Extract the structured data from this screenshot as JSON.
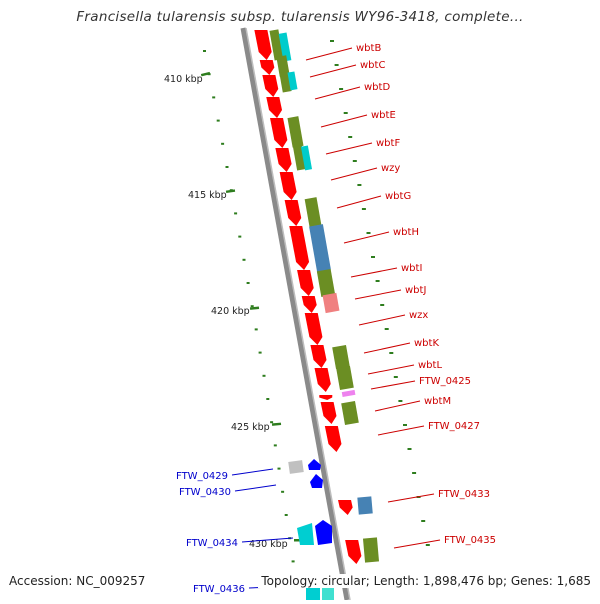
{
  "title": "Francisella tularensis subsp. tularensis WY96-3418, complete...",
  "accession": "Accession: NC_009257",
  "stats": "Topology: circular; Length: 1,898,476 bp; Genes: 1,685",
  "colors": {
    "backbone": "#8a8a8a",
    "cds_forward": "#ff0000",
    "reverse_label": "#0000cc",
    "forward_label": "#cc0000",
    "tick": "#2e7d1e",
    "cog_green": "#6b8e23",
    "cog_teal": "#00cccc",
    "cog_blue": "#4682b4",
    "cog_pink": "#ee82ee",
    "cog_salmon": "#f08080",
    "reverse_blue": "#0000ff",
    "reverse_grey": "#c0c0c0",
    "reverse_cyan": "#00ced1"
  },
  "scale_labels": [
    "410 kbp",
    "415 kbp",
    "420 kbp",
    "425 kbp",
    "430 kbp"
  ],
  "forward_genes": [
    {
      "name": "wbtB",
      "cog": "green"
    },
    {
      "name": "wbtC",
      "cog": "green"
    },
    {
      "name": "wbtD",
      "cog": "green"
    },
    {
      "name": "wbtE",
      "cog": "green"
    },
    {
      "name": "wbtF",
      "cog": "teal"
    },
    {
      "name": "wzy",
      "cog": "none"
    },
    {
      "name": "wbtG",
      "cog": "green"
    },
    {
      "name": "wbtH",
      "cog": "blue"
    },
    {
      "name": "wbtI",
      "cog": "green"
    },
    {
      "name": "wbtJ",
      "cog": "salmon"
    },
    {
      "name": "wzx",
      "cog": "none"
    },
    {
      "name": "wbtK",
      "cog": "green"
    },
    {
      "name": "wbtL",
      "cog": "green"
    },
    {
      "name": "FTW_0425",
      "cog": "pink"
    },
    {
      "name": "wbtM",
      "cog": "green"
    },
    {
      "name": "FTW_0427",
      "cog": "none"
    },
    {
      "name": "FTW_0433",
      "cog": "blue"
    },
    {
      "name": "FTW_0435",
      "cog": "green"
    }
  ],
  "reverse_genes": [
    "FTW_0429",
    "FTW_0430",
    "FTW_0434",
    "FTW_0436"
  ]
}
